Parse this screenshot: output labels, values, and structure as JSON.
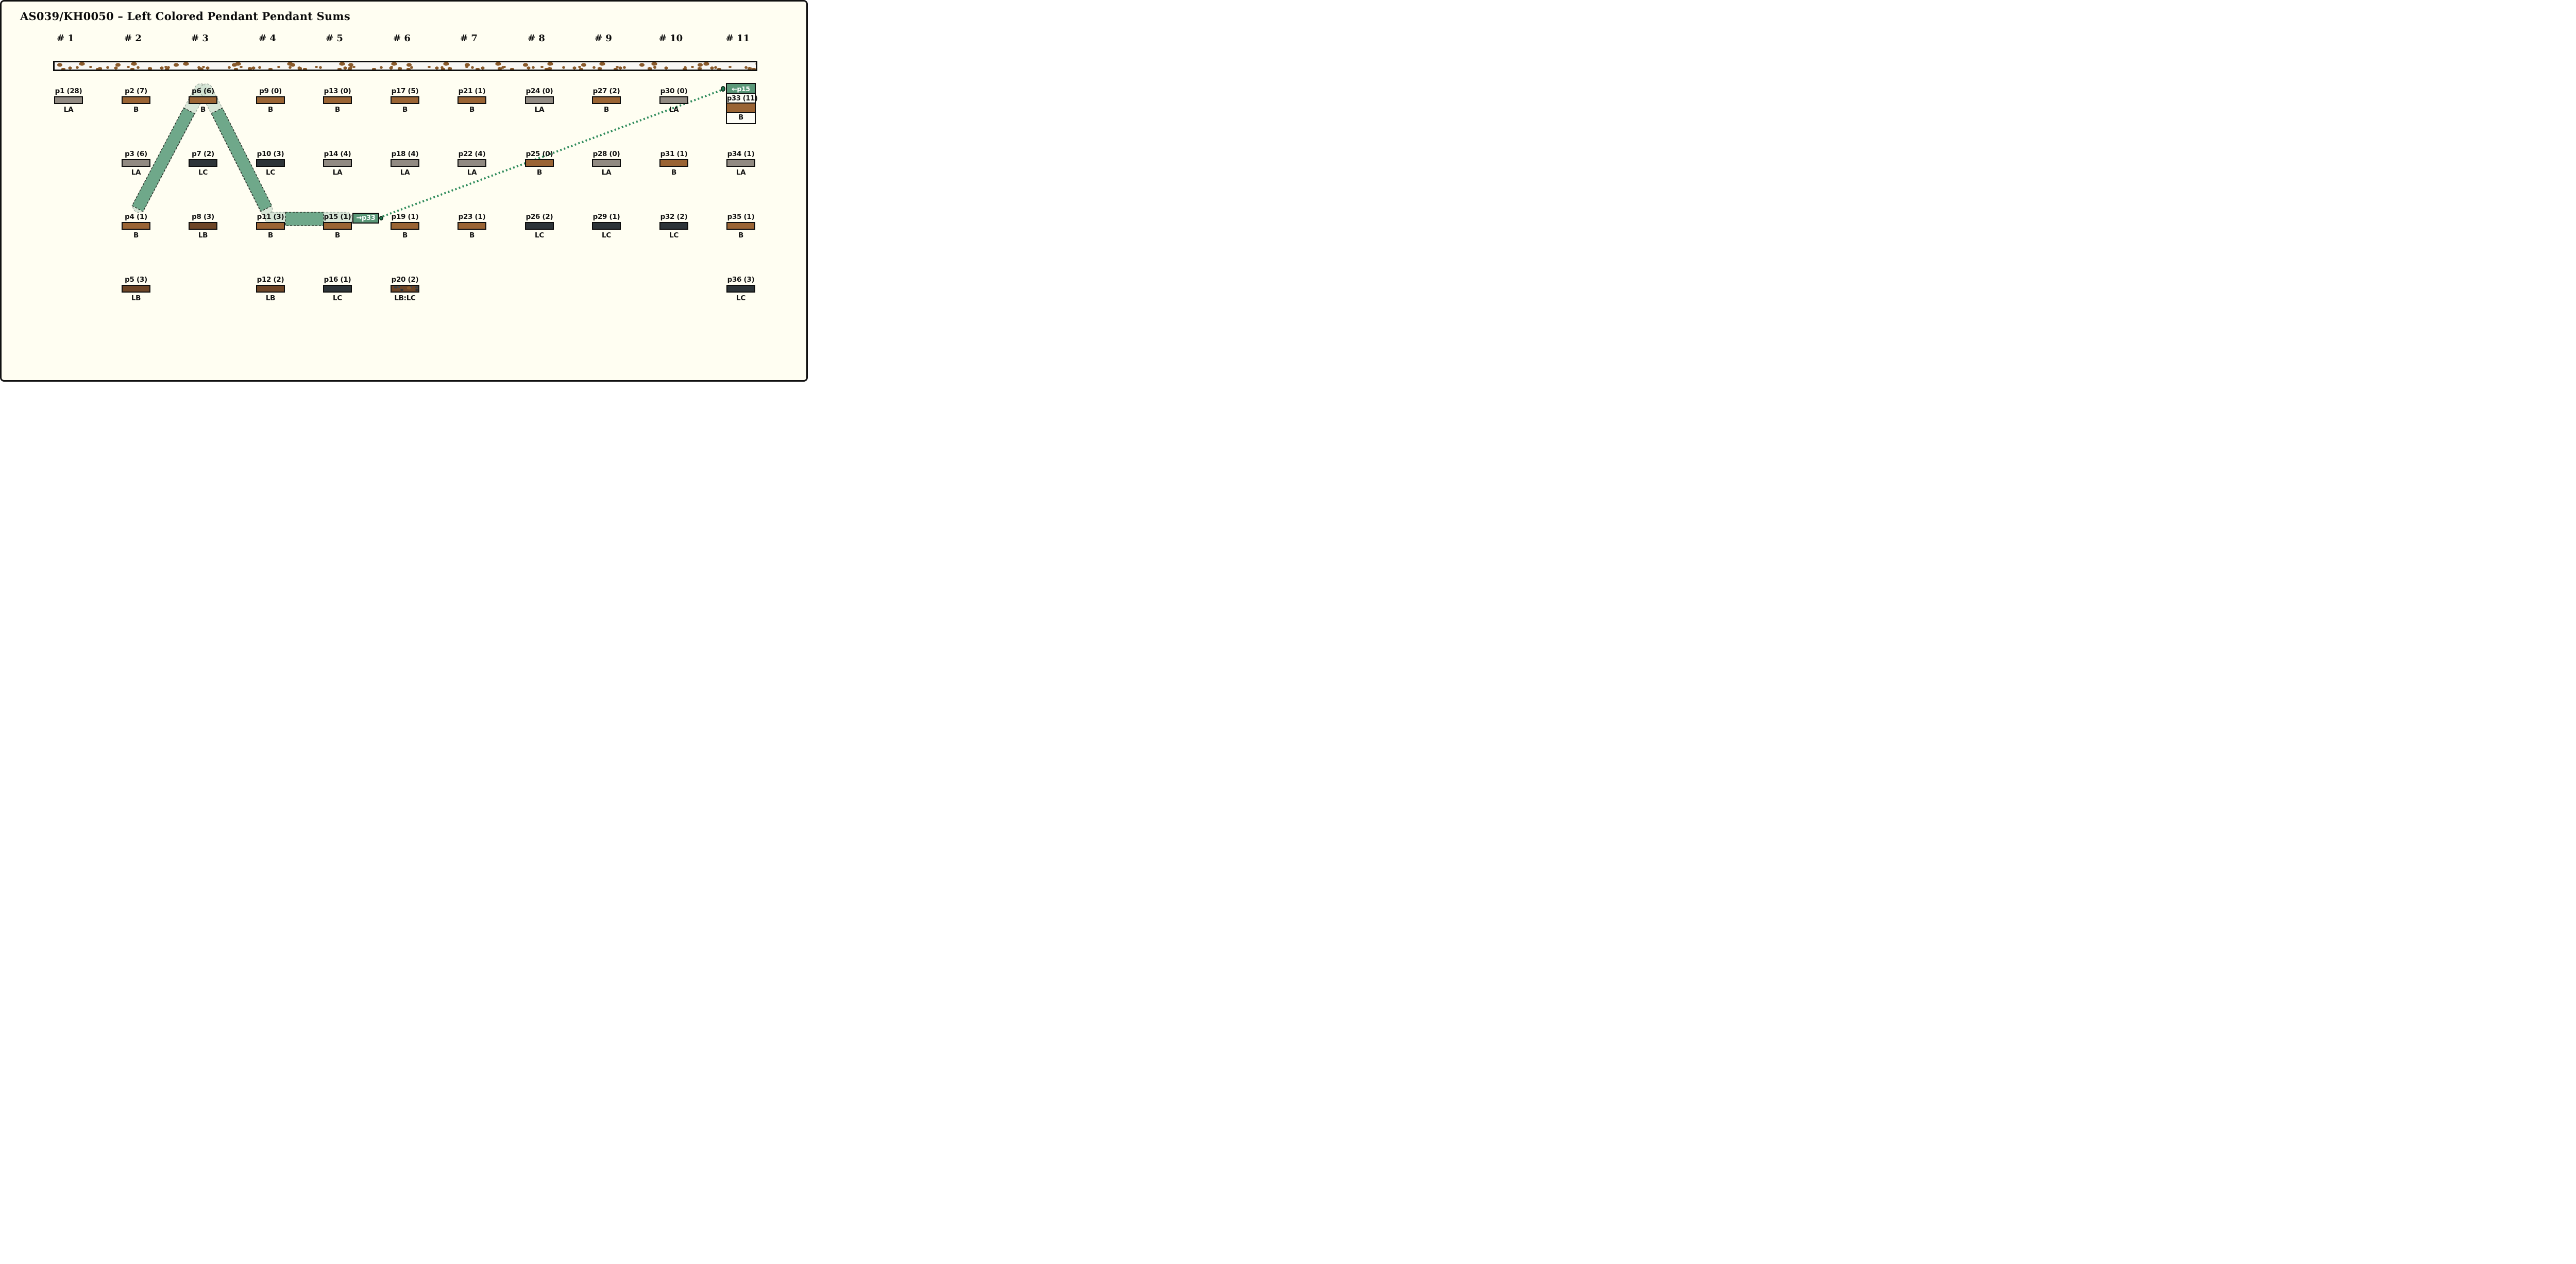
{
  "title": "AS039/KH0050 – Left Colored Pendant Pendant Sums",
  "column_headers": [
    "# 1",
    "# 2",
    "# 3",
    "# 4",
    "# 5",
    "# 6",
    "# 7",
    "# 8",
    "# 9",
    "# 10",
    "# 11"
  ],
  "type_colors": {
    "B": "#9a6434",
    "LB": "#6e4627",
    "LA": "#918a82",
    "LC": "#2d3438"
  },
  "pendants": [
    {
      "label": "p1 (28)",
      "type": "LA",
      "col": 1,
      "row": 1
    },
    {
      "label": "p2 (7)",
      "type": "B",
      "col": 2,
      "row": 1
    },
    {
      "label": "p3 (6)",
      "type": "LA",
      "col": 2,
      "row": 2
    },
    {
      "label": "p4 (1)",
      "type": "B",
      "col": 2,
      "row": 3
    },
    {
      "label": "p5 (3)",
      "type": "LB",
      "col": 2,
      "row": 4
    },
    {
      "label": "p6 (6)",
      "type": "B",
      "col": 3,
      "row": 1
    },
    {
      "label": "p7 (2)",
      "type": "LC",
      "col": 3,
      "row": 2
    },
    {
      "label": "p8 (3)",
      "type": "LB",
      "col": 3,
      "row": 3
    },
    {
      "label": "p9 (0)",
      "type": "B",
      "col": 4,
      "row": 1
    },
    {
      "label": "p10 (3)",
      "type": "LC",
      "col": 4,
      "row": 2
    },
    {
      "label": "p11 (3)",
      "type": "B",
      "col": 4,
      "row": 3
    },
    {
      "label": "p12 (2)",
      "type": "LB",
      "col": 4,
      "row": 4
    },
    {
      "label": "p13 (0)",
      "type": "B",
      "col": 5,
      "row": 1
    },
    {
      "label": "p14 (4)",
      "type": "LA",
      "col": 5,
      "row": 2
    },
    {
      "label": "p15 (1)",
      "type": "B",
      "col": 5,
      "row": 3
    },
    {
      "label": "p16 (1)",
      "type": "LC",
      "col": 5,
      "row": 4
    },
    {
      "label": "p17 (5)",
      "type": "B",
      "col": 6,
      "row": 1
    },
    {
      "label": "p18 (4)",
      "type": "LA",
      "col": 6,
      "row": 2
    },
    {
      "label": "p19 (1)",
      "type": "B",
      "col": 6,
      "row": 3
    },
    {
      "label": "p20 (2)",
      "type": "LB:LC",
      "col": 6,
      "row": 4
    },
    {
      "label": "p21 (1)",
      "type": "B",
      "col": 7,
      "row": 1
    },
    {
      "label": "p22 (4)",
      "type": "LA",
      "col": 7,
      "row": 2
    },
    {
      "label": "p23 (1)",
      "type": "B",
      "col": 7,
      "row": 3
    },
    {
      "label": "p24 (0)",
      "type": "LA",
      "col": 8,
      "row": 1
    },
    {
      "label": "p25 (0)",
      "type": "B",
      "col": 8,
      "row": 2
    },
    {
      "label": "p26 (2)",
      "type": "LC",
      "col": 8,
      "row": 3
    },
    {
      "label": "p27 (2)",
      "type": "B",
      "col": 9,
      "row": 1
    },
    {
      "label": "p28 (0)",
      "type": "LA",
      "col": 9,
      "row": 2
    },
    {
      "label": "p29 (1)",
      "type": "LC",
      "col": 9,
      "row": 3
    },
    {
      "label": "p30 (0)",
      "type": "LA",
      "col": 10,
      "row": 1
    },
    {
      "label": "p31 (1)",
      "type": "B",
      "col": 10,
      "row": 2
    },
    {
      "label": "p32 (2)",
      "type": "LC",
      "col": 10,
      "row": 3
    },
    {
      "label": "p33 (11)",
      "type": "B",
      "col": 11,
      "row": 1,
      "special": true
    },
    {
      "label": "p34 (1)",
      "type": "LA",
      "col": 11,
      "row": 2
    },
    {
      "label": "p35 (1)",
      "type": "B",
      "col": 11,
      "row": 3
    },
    {
      "label": "p36 (3)",
      "type": "LC",
      "col": 11,
      "row": 4
    }
  ],
  "special_box": {
    "incoming_label": "←p15",
    "pendant_label": "p33 (11)",
    "type_label": "B"
  },
  "path": {
    "continuation_label": "→p33",
    "highlight_color": "#cfe0d1",
    "band_color": "#6fa88a",
    "dotted_color": "#2e8b5c",
    "endpoint_dot_color": "#1d7a4f"
  },
  "colors": {
    "background": "#fffef2",
    "frame": "#111111",
    "texture_speckle": "#8a5a2b"
  }
}
